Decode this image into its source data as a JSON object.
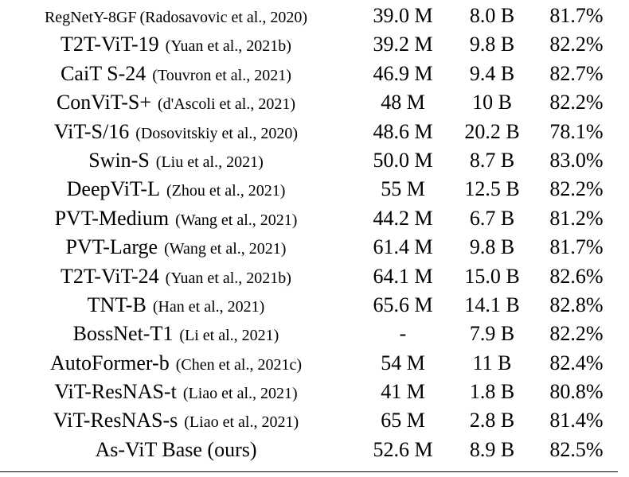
{
  "table": {
    "rows": [
      [
        "RegNetY-8GF",
        "(Radosavovic et al., 2020)",
        "39.0 M",
        "8.0 B",
        "81.7%"
      ],
      [
        "T2T-ViT-19",
        "(Yuan et al., 2021b)",
        "39.2 M",
        "9.8 B",
        "82.2%"
      ],
      [
        "CaiT S-24",
        "(Touvron et al., 2021)",
        "46.9 M",
        "9.4 B",
        "82.7%"
      ],
      [
        "ConViT-S+",
        "(d'Ascoli et al., 2021)",
        "48 M",
        "10 B",
        "82.2%"
      ],
      [
        "ViT-S/16",
        "(Dosovitskiy et al., 2020)",
        "48.6 M",
        "20.2 B",
        "78.1%"
      ],
      [
        "Swin-S",
        "(Liu et al., 2021)",
        "50.0 M",
        "8.7 B",
        "83.0%"
      ],
      [
        "DeepViT-L",
        "(Zhou et al., 2021)",
        "55 M",
        "12.5 B",
        "82.2%"
      ],
      [
        "PVT-Medium",
        "(Wang et al., 2021)",
        "44.2 M",
        "6.7 B",
        "81.2%"
      ],
      [
        "PVT-Large",
        "(Wang et al., 2021)",
        "61.4 M",
        "9.8 B",
        "81.7%"
      ],
      [
        "T2T-ViT-24",
        "(Yuan et al., 2021b)",
        "64.1 M",
        "15.0 B",
        "82.6%"
      ],
      [
        "TNT-B",
        "(Han et al., 2021)",
        "65.6 M",
        "14.1 B",
        "82.8%"
      ],
      [
        "BossNet-T1",
        "(Li et al., 2021)",
        "-",
        "7.9 B",
        "82.2%"
      ],
      [
        "AutoFormer-b",
        "(Chen et al., 2021c)",
        "54 M",
        "11 B",
        "82.4%"
      ],
      [
        "ViT-ResNAS-t",
        "(Liao et al., 2021)",
        "41 M",
        "1.8 B",
        "80.8%"
      ],
      [
        "ViT-ResNAS-s",
        "(Liao et al., 2021)",
        "65 M",
        "2.8 B",
        "81.4%"
      ],
      [
        "As-ViT Base (ours)",
        null,
        "52.6 M",
        "8.9 B",
        "82.5%"
      ]
    ]
  }
}
